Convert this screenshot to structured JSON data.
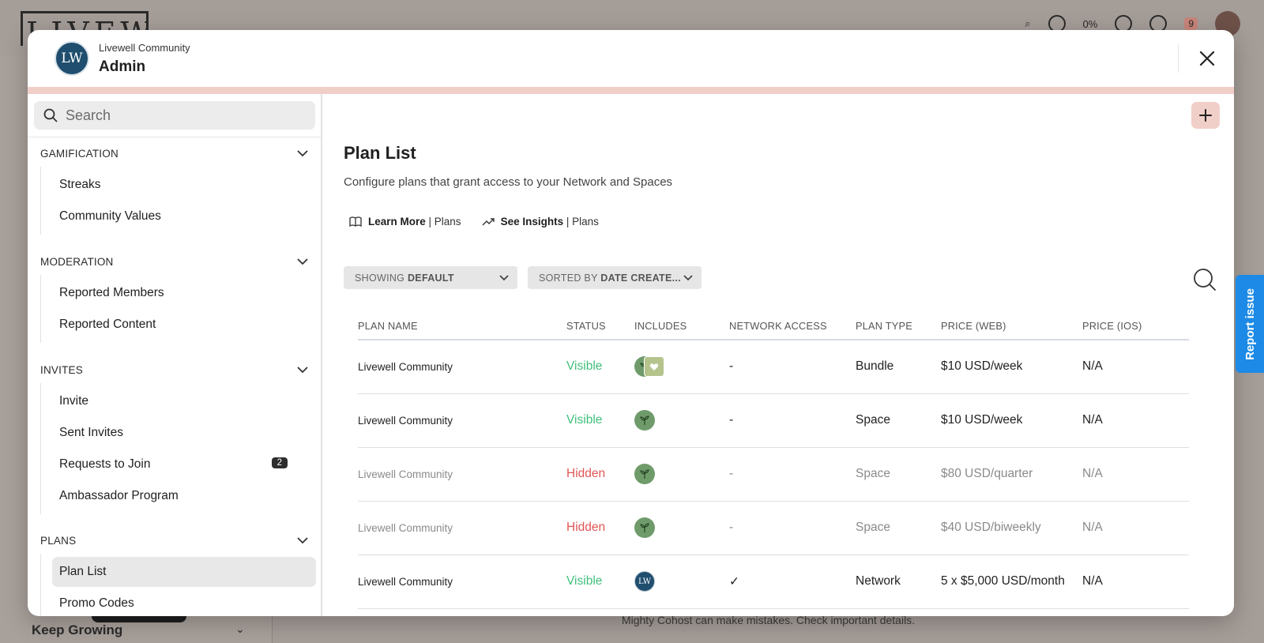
{
  "background": {
    "logo_text": "LIVEWELL",
    "topbar_percent": "0%",
    "topbar_badge": "9",
    "sidebar_bottom_label": "Keep Growing",
    "footer_note": "Mighty Cohost can make mistakes. Check important details."
  },
  "modal": {
    "brand_initials": "LW",
    "brand_subtitle": "Livewell Community",
    "brand_title": "Admin",
    "close_icon": "close-icon"
  },
  "sidebar": {
    "search_placeholder": "Search",
    "sections": [
      {
        "title": "GAMIFICATION",
        "items": [
          "Streaks",
          "Community Values"
        ]
      },
      {
        "title": "MODERATION",
        "items": [
          "Reported Members",
          "Reported Content"
        ]
      },
      {
        "title": "INVITES",
        "items": [
          "Invite",
          "Sent Invites",
          "Requests to Join",
          "Ambassador Program"
        ],
        "badge_item": "Requests to Join",
        "badge": "2"
      },
      {
        "title": "PLANS",
        "items": [
          "Plan List",
          "Promo Codes"
        ],
        "active": "Plan List"
      }
    ]
  },
  "main": {
    "title": "Plan List",
    "description": "Configure plans that grant access to your Network and Spaces",
    "learn_more_bold": "Learn More",
    "learn_more_rest": " | Plans",
    "insights_bold": "See Insights",
    "insights_rest": " | Plans",
    "filter_showing_prefix": "SHOWING ",
    "filter_showing_value": "DEFAULT",
    "filter_sorted_prefix": "SORTED BY ",
    "filter_sorted_value": "DATE CREATE...",
    "columns": [
      "PLAN NAME",
      "STATUS",
      "INCLUDES",
      "NETWORK ACCESS",
      "PLAN TYPE",
      "PRICE (WEB)",
      "PRICE (IOS)"
    ],
    "rows": [
      {
        "name": "Livewell Community",
        "status": "Visible",
        "includes": "sprout+heart",
        "network": "-",
        "type": "Bundle",
        "price_web": "$10 USD/week",
        "price_ios": "N/A"
      },
      {
        "name": "Livewell Community",
        "status": "Visible",
        "includes": "sprout",
        "network": "-",
        "type": "Space",
        "price_web": "$10 USD/week",
        "price_ios": "N/A"
      },
      {
        "name": "Livewell Community",
        "status": "Hidden",
        "includes": "sprout",
        "network": "-",
        "type": "Space",
        "price_web": "$80 USD/quarter",
        "price_ios": "N/A"
      },
      {
        "name": "Livewell Community",
        "status": "Hidden",
        "includes": "sprout",
        "network": "-",
        "type": "Space",
        "price_web": "$40 USD/biweekly",
        "price_ios": "N/A"
      },
      {
        "name": "Livewell Community",
        "status": "Visible",
        "includes": "LW",
        "network": "✓",
        "type": "Network",
        "price_web": "5 x $5,000 USD/month",
        "price_ios": "N/A"
      }
    ],
    "report_issue": "Report issue"
  }
}
